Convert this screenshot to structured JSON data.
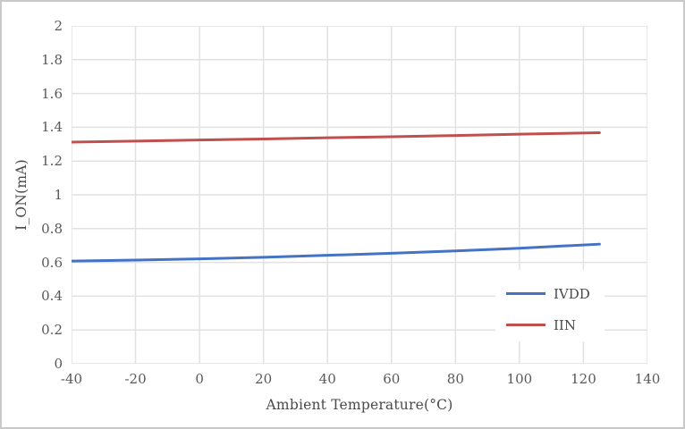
{
  "colors": {
    "gridline": "#E1E1E1",
    "tick_text": "#595959",
    "frame_border": "#C9C9C9",
    "legend_bg": "#FFFFFF",
    "series_blue": "#4472C4",
    "series_red": "#C0504D"
  },
  "chart_data": {
    "type": "line",
    "title": "",
    "xlabel": "Ambient Temperature(°C)",
    "ylabel": "I_ON(mA)",
    "xlim": [
      -40,
      140
    ],
    "xstep": 20,
    "ylim": [
      0,
      2
    ],
    "ystep": 0.2,
    "grid": true,
    "legend_position": "inside-right",
    "xticks": [
      "-40",
      "-20",
      "0",
      "20",
      "40",
      "60",
      "80",
      "100",
      "120",
      "140"
    ],
    "yticks": [
      "0",
      "0.2",
      "0.4",
      "0.6",
      "0.8",
      "1",
      "1.2",
      "1.4",
      "1.6",
      "1.8",
      "2"
    ],
    "x": [
      -40,
      -20,
      0,
      20,
      40,
      60,
      80,
      100,
      125
    ],
    "series": [
      {
        "name": "IVDD",
        "color": "#4472C4",
        "values": [
          0.608,
          0.614,
          0.621,
          0.63,
          0.642,
          0.654,
          0.668,
          0.684,
          0.708
        ]
      },
      {
        "name": "IIN",
        "color": "#C0504D",
        "values": [
          1.312,
          1.318,
          1.325,
          1.331,
          1.338,
          1.344,
          1.351,
          1.359,
          1.368
        ]
      }
    ]
  }
}
